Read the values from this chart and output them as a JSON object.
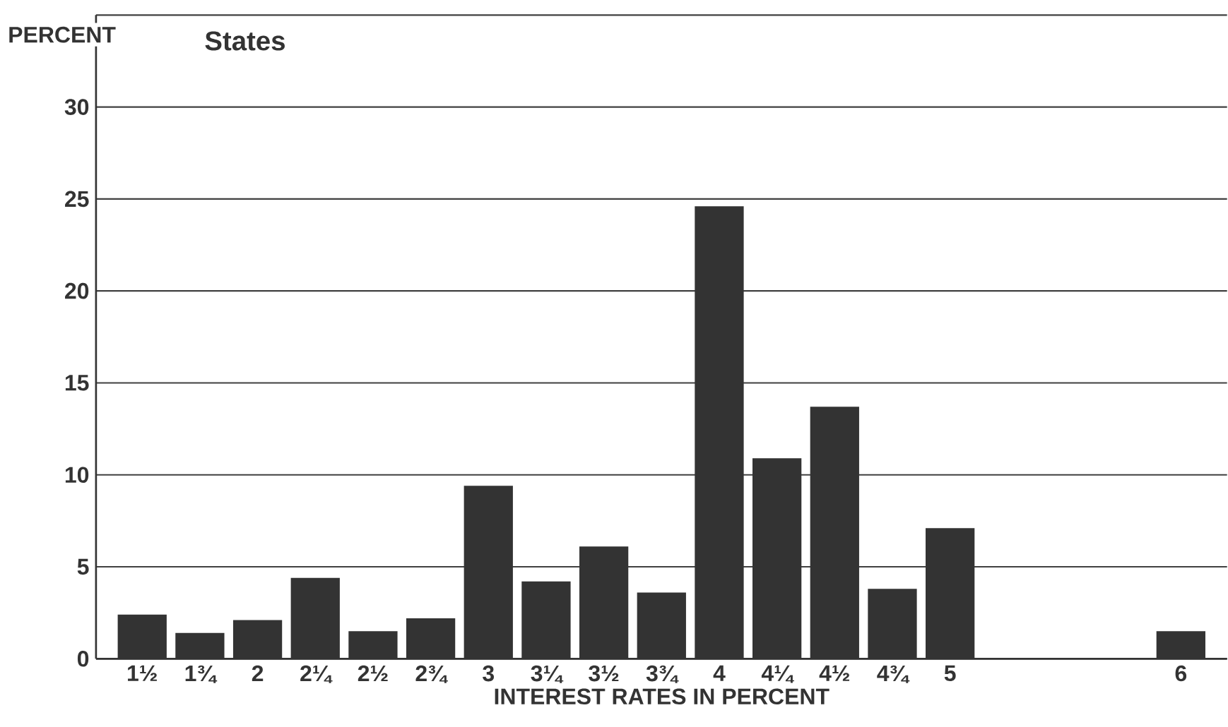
{
  "chart_data": {
    "type": "bar",
    "title": "States",
    "xlabel": "INTEREST RATES IN PERCENT",
    "ylabel": "PERCENT",
    "categories": [
      "1½",
      "1¾",
      "2",
      "2¼",
      "2½",
      "2¾",
      "3",
      "3¼",
      "3½",
      "3¾",
      "4",
      "4¼",
      "4½",
      "4¾",
      "5",
      null,
      null,
      null,
      "6"
    ],
    "values": [
      2.4,
      1.4,
      2.1,
      4.4,
      1.5,
      2.2,
      9.4,
      4.2,
      6.1,
      3.6,
      24.6,
      10.9,
      13.7,
      3.8,
      7.1,
      null,
      null,
      null,
      1.5
    ],
    "color": "#333333",
    "ylim": [
      0,
      35
    ],
    "yticks": [
      0,
      5,
      10,
      15,
      20,
      25,
      30,
      {
        "value": 35,
        "label": null
      }
    ],
    "grid": "y"
  }
}
